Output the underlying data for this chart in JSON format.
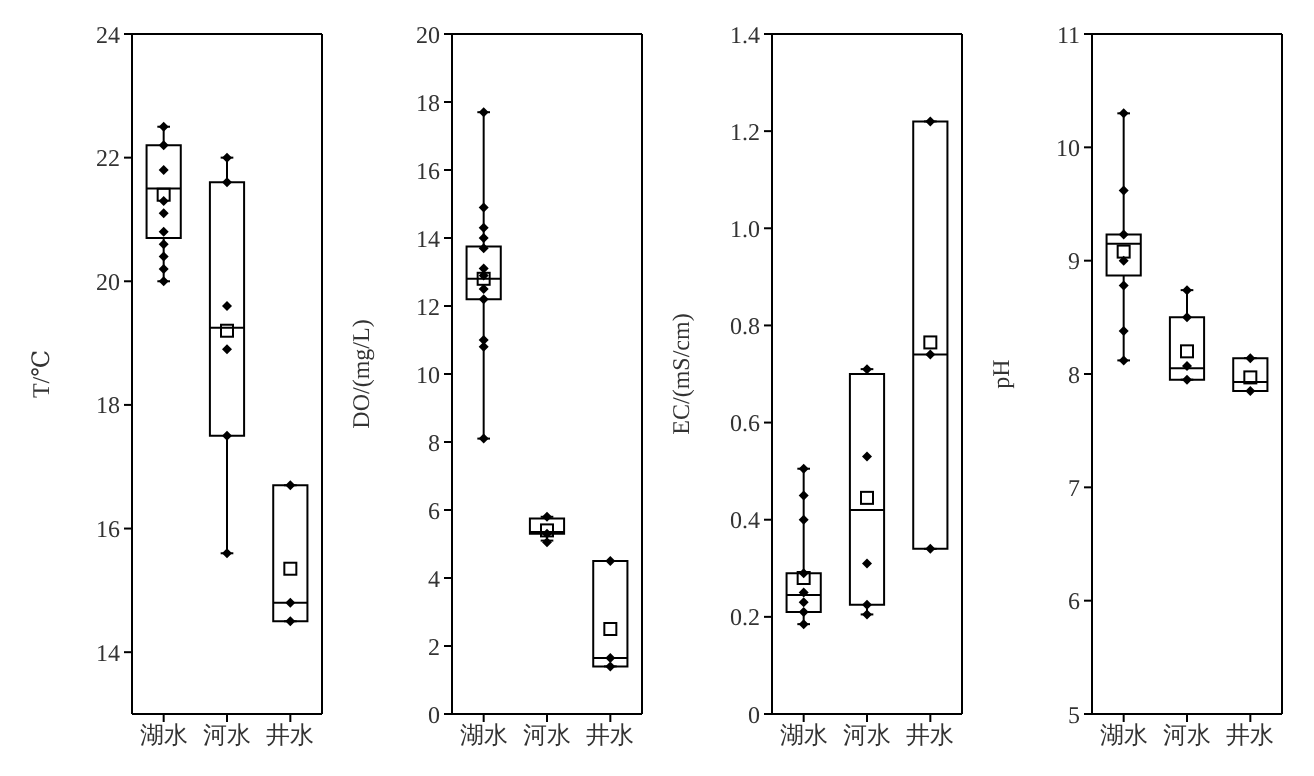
{
  "chart_data": [
    {
      "type": "box",
      "ylabel": "T/℃",
      "color": "#000000",
      "categories": [
        "湖水",
        "河水",
        "井水"
      ],
      "ylim": [
        13,
        24
      ],
      "yticks": [
        14,
        16,
        18,
        20,
        22,
        24
      ],
      "marker": "diamond",
      "boxes": [
        {
          "low": 20.0,
          "q1": 20.7,
          "median": 21.5,
          "q3": 22.2,
          "high": 22.5,
          "mean": 21.4
        },
        {
          "low": 15.6,
          "q1": 17.5,
          "median": 19.25,
          "q3": 21.6,
          "high": 22.0,
          "mean": 19.2
        },
        {
          "low": 14.5,
          "q1": 14.5,
          "median": 14.8,
          "q3": 16.7,
          "high": 16.7,
          "mean": 15.35
        }
      ],
      "series": [
        {
          "type": "scatter",
          "color": "#000000",
          "x": [
            "湖水",
            "湖水",
            "湖水",
            "湖水",
            "湖水",
            "湖水",
            "湖水",
            "湖水",
            "湖水",
            "湖水",
            "河水",
            "河水",
            "河水",
            "河水",
            "河水",
            "河水",
            "井水",
            "井水",
            "井水"
          ],
          "values": [
            22.5,
            22.2,
            21.8,
            21.3,
            21.1,
            20.8,
            20.6,
            20.4,
            20.2,
            20.0,
            22.0,
            21.6,
            19.6,
            18.9,
            17.5,
            15.6,
            16.7,
            14.8,
            14.5
          ]
        }
      ]
    },
    {
      "type": "box",
      "ylabel": "DO/(mg/L)",
      "color": "#000000",
      "categories": [
        "湖水",
        "河水",
        "井水"
      ],
      "ylim": [
        0,
        20
      ],
      "yticks": [
        0,
        2,
        4,
        6,
        8,
        10,
        12,
        14,
        16,
        18,
        20
      ],
      "marker": "diamond",
      "boxes": [
        {
          "low": 8.1,
          "q1": 12.2,
          "median": 12.8,
          "q3": 13.75,
          "high": 17.7,
          "mean": 12.8
        },
        {
          "low": 5.1,
          "q1": 5.3,
          "median": 5.35,
          "q3": 5.75,
          "high": 5.8,
          "mean": 5.4
        },
        {
          "low": 1.4,
          "q1": 1.4,
          "median": 1.65,
          "q3": 4.5,
          "high": 4.5,
          "mean": 2.5
        }
      ],
      "series": [
        {
          "type": "scatter",
          "color": "#000000",
          "x": [
            "湖水",
            "湖水",
            "湖水",
            "湖水",
            "湖水",
            "湖水",
            "湖水",
            "湖水",
            "湖水",
            "湖水",
            "湖水",
            "湖水",
            "河水",
            "河水",
            "河水",
            "井水",
            "井水",
            "井水"
          ],
          "values": [
            17.7,
            14.9,
            14.3,
            14.0,
            13.7,
            13.1,
            12.9,
            12.5,
            12.2,
            11.0,
            10.8,
            8.1,
            5.8,
            5.3,
            5.05,
            4.5,
            1.65,
            1.4
          ]
        }
      ]
    },
    {
      "type": "box",
      "ylabel": "EC/(mS/cm)",
      "color": "#000000",
      "categories": [
        "湖水",
        "河水",
        "井水"
      ],
      "ylim": [
        0,
        1.4
      ],
      "yticks": [
        0,
        0.2,
        0.4,
        0.6,
        0.8,
        {
          "value": 1,
          "label": "1.0"
        },
        1.2,
        1.4
      ],
      "marker": "diamond",
      "boxes": [
        {
          "low": 0.185,
          "q1": 0.21,
          "median": 0.245,
          "q3": 0.29,
          "high": 0.505,
          "mean": 0.28
        },
        {
          "low": 0.205,
          "q1": 0.225,
          "median": 0.42,
          "q3": 0.7,
          "high": 0.71,
          "mean": 0.445
        },
        {
          "low": 0.34,
          "q1": 0.34,
          "median": 0.74,
          "q3": 1.22,
          "high": 1.22,
          "mean": 0.765
        }
      ],
      "series": [
        {
          "type": "scatter",
          "color": "#000000",
          "x": [
            "湖水",
            "湖水",
            "湖水",
            "湖水",
            "湖水",
            "湖水",
            "湖水",
            "湖水",
            "河水",
            "河水",
            "河水",
            "河水",
            "河水",
            "井水",
            "井水",
            "井水"
          ],
          "values": [
            0.505,
            0.45,
            0.4,
            0.29,
            0.25,
            0.23,
            0.21,
            0.185,
            0.71,
            0.53,
            0.31,
            0.225,
            0.205,
            1.22,
            0.74,
            0.34
          ]
        }
      ]
    },
    {
      "type": "box",
      "ylabel": "pH",
      "color": "#000000",
      "categories": [
        "湖水",
        "河水",
        "井水"
      ],
      "ylim": [
        5,
        11
      ],
      "yticks": [
        5,
        6,
        7,
        8,
        9,
        10,
        11
      ],
      "marker": "diamond",
      "boxes": [
        {
          "low": 8.12,
          "q1": 8.87,
          "median": 9.15,
          "q3": 9.23,
          "high": 10.3,
          "mean": 9.08
        },
        {
          "low": 7.95,
          "q1": 7.95,
          "median": 8.05,
          "q3": 8.5,
          "high": 8.74,
          "mean": 8.2
        },
        {
          "low": 7.85,
          "q1": 7.85,
          "median": 7.93,
          "q3": 8.14,
          "high": 8.14,
          "mean": 7.97
        }
      ],
      "series": [
        {
          "type": "scatter",
          "color": "#000000",
          "x": [
            "湖水",
            "湖水",
            "湖水",
            "湖水",
            "湖水",
            "湖水",
            "湖水",
            "河水",
            "河水",
            "河水",
            "河水",
            "井水",
            "井水"
          ],
          "values": [
            10.3,
            9.62,
            9.23,
            9.0,
            8.78,
            8.38,
            8.12,
            8.74,
            8.5,
            8.07,
            7.95,
            8.14,
            7.85
          ]
        }
      ]
    }
  ]
}
